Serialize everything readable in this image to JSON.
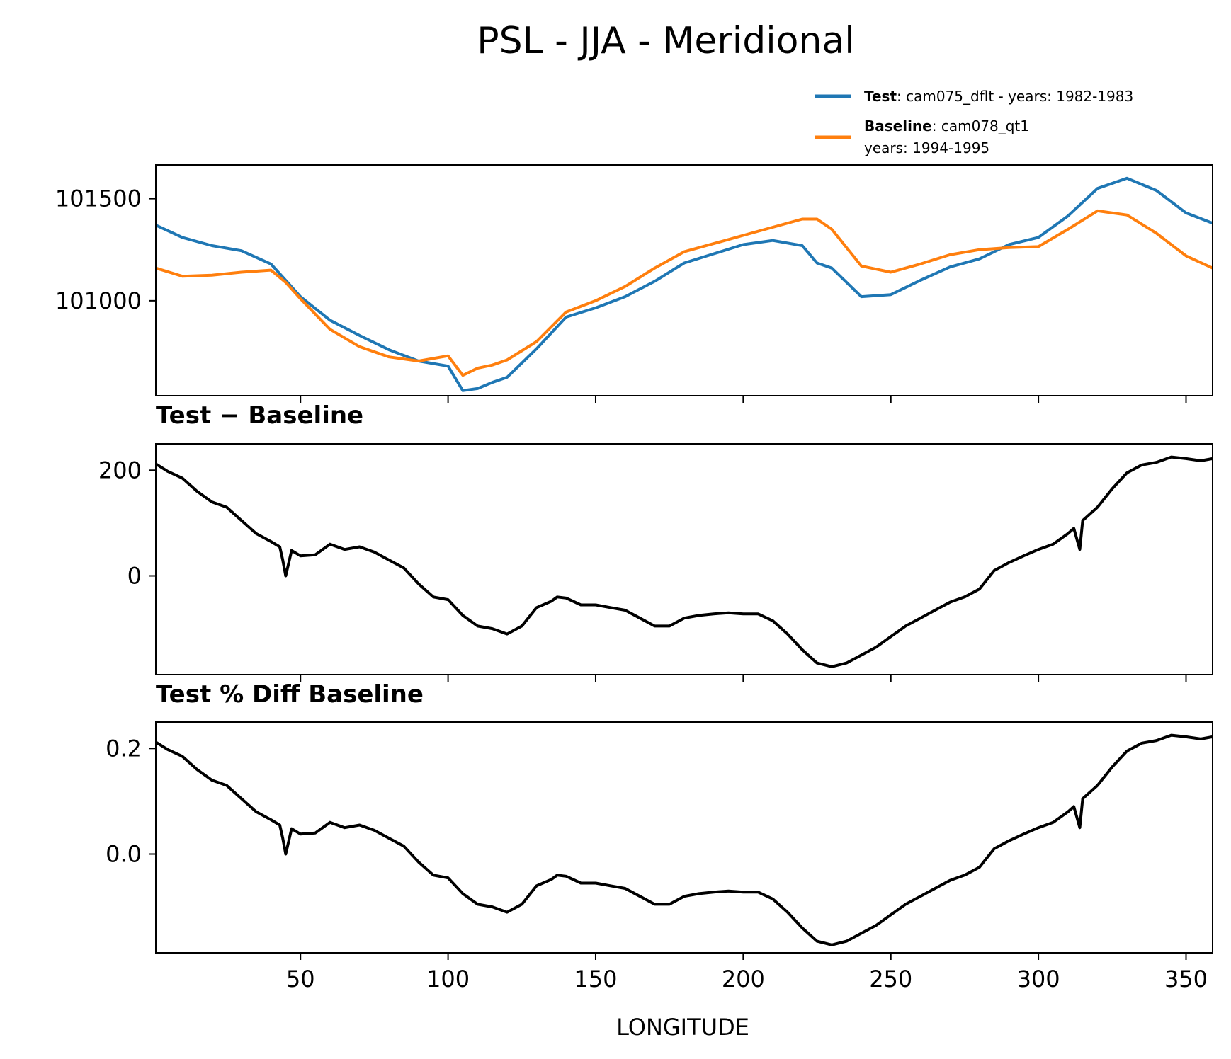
{
  "chart_data": [
    {
      "type": "line",
      "title": "PSL - JJA - Meridional",
      "xlabel": "LONGITUDE",
      "ylabel": "",
      "xlim": [
        1,
        359
      ],
      "ylim": [
        100535,
        101665
      ],
      "yticks": [
        101000,
        101500
      ],
      "colors": {
        "test": "#1f77b4",
        "baseline": "#ff7f0e"
      },
      "legend": {
        "test_name": "Test",
        "test_text": ": cam075_dflt - years: 1982-1983",
        "baseline_name": "Baseline",
        "baseline_text": ": cam078_qt1",
        "baseline_years": "years: 1994-1995"
      },
      "x": [
        1,
        10,
        20,
        30,
        40,
        45,
        50,
        60,
        70,
        80,
        90,
        100,
        105,
        110,
        115,
        120,
        130,
        140,
        150,
        160,
        170,
        180,
        190,
        200,
        210,
        220,
        225,
        230,
        240,
        250,
        260,
        270,
        280,
        290,
        300,
        310,
        320,
        330,
        340,
        350,
        359
      ],
      "series": [
        {
          "name": "Test",
          "values": [
            101370,
            101310,
            101270,
            101245,
            101180,
            101100,
            101020,
            100905,
            100830,
            100760,
            100705,
            100680,
            100560,
            100570,
            100600,
            100625,
            100765,
            100920,
            100965,
            101020,
            101095,
            101185,
            101230,
            101275,
            101295,
            101270,
            101185,
            101160,
            101020,
            101030,
            101100,
            101165,
            101205,
            101275,
            101310,
            101415,
            101550,
            101600,
            101540,
            101430,
            101380
          ]
        },
        {
          "name": "Baseline",
          "values": [
            101160,
            101120,
            101125,
            101140,
            101150,
            101090,
            101010,
            100860,
            100775,
            100725,
            100705,
            100730,
            100635,
            100670,
            100685,
            100710,
            100800,
            100945,
            101000,
            101070,
            101160,
            101240,
            101280,
            101320,
            101360,
            101400,
            101400,
            101350,
            101170,
            101140,
            101180,
            101225,
            101250,
            101260,
            101265,
            101350,
            101440,
            101420,
            101330,
            101220,
            101160
          ]
        }
      ]
    },
    {
      "type": "line",
      "title": "Test − Baseline",
      "xlim": [
        1,
        359
      ],
      "ylim": [
        -187,
        250
      ],
      "yticks": [
        0,
        200
      ],
      "x": [
        1,
        5,
        10,
        15,
        20,
        25,
        30,
        35,
        40,
        43,
        44,
        45,
        47,
        50,
        55,
        60,
        65,
        70,
        75,
        80,
        85,
        90,
        95,
        100,
        105,
        110,
        115,
        120,
        125,
        130,
        135,
        137,
        140,
        145,
        150,
        155,
        160,
        165,
        170,
        175,
        180,
        185,
        190,
        195,
        200,
        205,
        210,
        215,
        220,
        225,
        230,
        235,
        240,
        245,
        250,
        255,
        260,
        265,
        270,
        275,
        280,
        285,
        290,
        295,
        300,
        305,
        310,
        312,
        314,
        315,
        320,
        325,
        330,
        335,
        340,
        345,
        350,
        355,
        359
      ],
      "series": [
        {
          "name": "Test − Baseline",
          "values": [
            212,
            198,
            185,
            160,
            140,
            130,
            105,
            80,
            65,
            55,
            30,
            0,
            48,
            38,
            40,
            60,
            50,
            55,
            45,
            30,
            15,
            -15,
            -40,
            -45,
            -75,
            -95,
            -100,
            -110,
            -95,
            -60,
            -48,
            -40,
            -42,
            -55,
            -55,
            -60,
            -65,
            -80,
            -95,
            -95,
            -80,
            -75,
            -72,
            -70,
            -72,
            -72,
            -85,
            -110,
            -140,
            -165,
            -172,
            -165,
            -150,
            -135,
            -115,
            -95,
            -80,
            -65,
            -50,
            -40,
            -25,
            10,
            25,
            38,
            50,
            60,
            80,
            90,
            50,
            105,
            130,
            165,
            195,
            210,
            215,
            225,
            222,
            218,
            222
          ]
        }
      ]
    },
    {
      "type": "line",
      "title": "Test % Diff Baseline",
      "xlim": [
        1,
        359
      ],
      "ylim": [
        -0.187,
        0.25
      ],
      "yticks": [
        0.0,
        0.2
      ],
      "x": [
        1,
        5,
        10,
        15,
        20,
        25,
        30,
        35,
        40,
        43,
        44,
        45,
        47,
        50,
        55,
        60,
        65,
        70,
        75,
        80,
        85,
        90,
        95,
        100,
        105,
        110,
        115,
        120,
        125,
        130,
        135,
        137,
        140,
        145,
        150,
        155,
        160,
        165,
        170,
        175,
        180,
        185,
        190,
        195,
        200,
        205,
        210,
        215,
        220,
        225,
        230,
        235,
        240,
        245,
        250,
        255,
        260,
        265,
        270,
        275,
        280,
        285,
        290,
        295,
        300,
        305,
        310,
        312,
        314,
        315,
        320,
        325,
        330,
        335,
        340,
        345,
        350,
        355,
        359
      ],
      "series": [
        {
          "name": "Test % Diff Baseline",
          "values": [
            0.212,
            0.198,
            0.185,
            0.16,
            0.14,
            0.13,
            0.105,
            0.08,
            0.065,
            0.055,
            0.03,
            0.0,
            0.048,
            0.038,
            0.04,
            0.06,
            0.05,
            0.055,
            0.045,
            0.03,
            0.015,
            -0.015,
            -0.04,
            -0.045,
            -0.075,
            -0.095,
            -0.1,
            -0.11,
            -0.095,
            -0.06,
            -0.048,
            -0.04,
            -0.042,
            -0.055,
            -0.055,
            -0.06,
            -0.065,
            -0.08,
            -0.095,
            -0.095,
            -0.08,
            -0.075,
            -0.072,
            -0.07,
            -0.072,
            -0.072,
            -0.085,
            -0.11,
            -0.14,
            -0.165,
            -0.172,
            -0.165,
            -0.15,
            -0.135,
            -0.115,
            -0.095,
            -0.08,
            -0.065,
            -0.05,
            -0.04,
            -0.025,
            0.01,
            0.025,
            0.038,
            0.05,
            0.06,
            0.08,
            0.09,
            0.05,
            0.105,
            0.13,
            0.165,
            0.195,
            0.21,
            0.215,
            0.225,
            0.222,
            0.218,
            0.222
          ]
        }
      ]
    }
  ],
  "xticks": [
    50,
    100,
    150,
    200,
    250,
    300,
    350
  ]
}
